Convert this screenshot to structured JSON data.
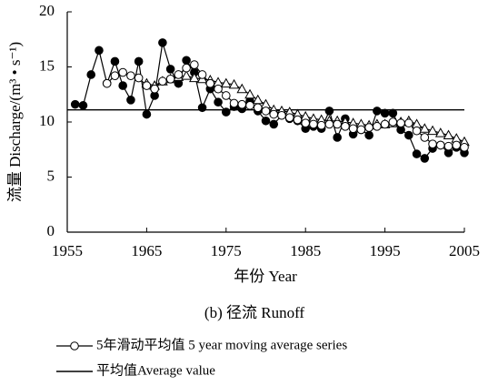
{
  "chart_data": {
    "type": "line",
    "ylabel": "流量 Discharge/(m³ • s⁻¹)",
    "xlabel": "年份 Year",
    "caption": "(b) 径流 Runoff",
    "x": [
      1956,
      1957,
      1958,
      1959,
      1960,
      1961,
      1962,
      1963,
      1964,
      1965,
      1966,
      1967,
      1968,
      1969,
      1970,
      1971,
      1972,
      1973,
      1974,
      1975,
      1976,
      1977,
      1978,
      1979,
      1980,
      1981,
      1982,
      1983,
      1984,
      1985,
      1986,
      1987,
      1988,
      1989,
      1990,
      1991,
      1992,
      1993,
      1994,
      1995,
      1996,
      1997,
      1998,
      1999,
      2000,
      2001,
      2002,
      2003,
      2004,
      2005
    ],
    "xlim": [
      1955,
      2005
    ],
    "xticks": [
      1955,
      1965,
      1975,
      1985,
      1995,
      2005
    ],
    "ylim": [
      0,
      20
    ],
    "yticks": [
      0,
      5,
      10,
      15,
      20
    ],
    "series": [
      {
        "color": "#000000",
        "marker": "filled-circle",
        "values": [
          11.6,
          11.5,
          14.3,
          16.5,
          13.5,
          15.5,
          13.3,
          12.0,
          15.5,
          10.7,
          12.4,
          17.2,
          14.8,
          13.5,
          15.6,
          14.5,
          11.3,
          13.0,
          11.8,
          10.9,
          11.4,
          11.2,
          11.9,
          11.0,
          10.1,
          9.8,
          10.6,
          10.3,
          10.1,
          9.4,
          9.6,
          9.4,
          11.0,
          8.6,
          10.3,
          8.9,
          9.3,
          8.8,
          11.0,
          10.8,
          10.8,
          9.3,
          8.8,
          7.1,
          6.7,
          7.6,
          7.9,
          7.2,
          7.7,
          7.2
        ]
      },
      {
        "color": "#000000",
        "marker": "triangle",
        "values": [
          null,
          null,
          null,
          null,
          null,
          null,
          null,
          null,
          null,
          13.5,
          13.3,
          13.7,
          13.9,
          14.1,
          14.2,
          14.0,
          13.9,
          13.8,
          13.6,
          13.5,
          13.4,
          13.0,
          12.5,
          12.0,
          11.6,
          11.1,
          11.0,
          10.9,
          10.7,
          10.5,
          10.3,
          10.2,
          10.1,
          10.1,
          10.0,
          9.9,
          9.8,
          9.7,
          9.8,
          9.8,
          9.9,
          10.0,
          10.1,
          9.8,
          9.4,
          9.2,
          9.0,
          8.8,
          8.5,
          8.2
        ]
      },
      {
        "name": "5年滑动平均值 5 year moving average series",
        "color": "#000000",
        "marker": "open-circle",
        "values": [
          null,
          null,
          null,
          null,
          13.5,
          14.2,
          14.5,
          14.2,
          14.0,
          13.3,
          13.0,
          13.7,
          13.9,
          14.3,
          14.9,
          15.2,
          14.3,
          13.5,
          13.0,
          12.4,
          11.7,
          11.6,
          11.5,
          11.3,
          11.0,
          10.7,
          10.6,
          10.4,
          10.2,
          9.9,
          9.8,
          9.7,
          9.8,
          9.8,
          9.6,
          9.4,
          9.3,
          9.5,
          9.6,
          9.8,
          10.0,
          9.9,
          9.9,
          9.2,
          8.6,
          8.0,
          7.9,
          7.8,
          7.9,
          7.7
        ]
      }
    ],
    "reference_line": {
      "name": "平均值Average value",
      "value": 11.1,
      "color": "#000000"
    }
  }
}
